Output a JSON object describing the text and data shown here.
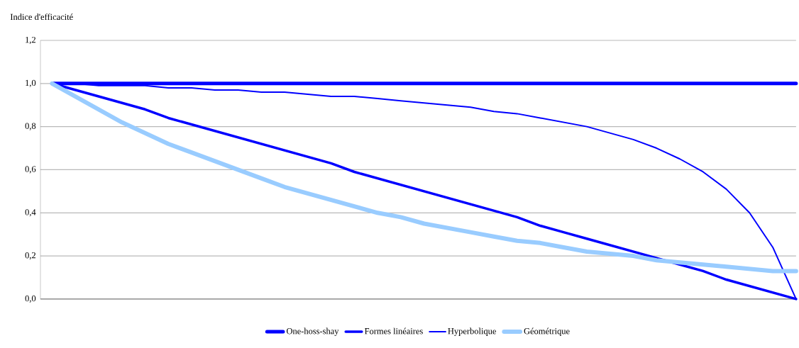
{
  "chart_data": {
    "type": "line",
    "ylabel": "Indice d'efficacité",
    "categories": [
      null,
      null,
      null,
      null,
      null,
      null,
      null,
      null,
      null,
      null,
      null,
      null,
      null,
      null,
      null,
      null,
      null,
      null,
      null,
      null,
      null,
      null,
      null,
      null,
      null,
      null,
      null,
      null,
      null,
      null,
      null,
      null,
      null
    ],
    "series": [
      {
        "name": "One-hoss-shay",
        "color": "#0000ff",
        "values": [
          1,
          1,
          1,
          1,
          1,
          1,
          1,
          1,
          1,
          1,
          1,
          1,
          1,
          1,
          1,
          1,
          1,
          1,
          1,
          1,
          1,
          1,
          1,
          1,
          1,
          1,
          1,
          1,
          1,
          1,
          1,
          1,
          1
        ]
      },
      {
        "name": "Formes linéaires",
        "color": "#0000ff",
        "values": [
          1,
          0.97,
          0.94,
          0.91,
          0.88,
          0.84,
          0.81,
          0.78,
          0.75,
          0.72,
          0.69,
          0.66,
          0.63,
          0.59,
          0.56,
          0.53,
          0.5,
          0.47,
          0.44,
          0.41,
          0.38,
          0.34,
          0.31,
          0.28,
          0.25,
          0.22,
          0.19,
          0.16,
          0.13,
          0.09,
          0.06,
          0.03,
          0
        ]
      },
      {
        "name": "Hyperbolique",
        "color": "#0000ff",
        "values": [
          1,
          1.0,
          0.99,
          0.99,
          0.99,
          0.98,
          0.98,
          0.97,
          0.97,
          0.96,
          0.96,
          0.95,
          0.94,
          0.94,
          0.93,
          0.92,
          0.91,
          0.9,
          0.89,
          0.87,
          0.86,
          0.84,
          0.82,
          0.8,
          0.77,
          0.74,
          0.7,
          0.65,
          0.59,
          0.51,
          0.4,
          0.24,
          0
        ]
      },
      {
        "name": "Géométrique",
        "color": "#99ccff",
        "values": [
          1,
          0.94,
          0.88,
          0.82,
          0.77,
          0.72,
          0.68,
          0.64,
          0.6,
          0.56,
          0.52,
          0.49,
          0.46,
          0.43,
          0.4,
          0.38,
          0.35,
          0.33,
          0.31,
          0.29,
          0.27,
          0.26,
          0.24,
          0.22,
          0.21,
          0.2,
          0.18,
          0.17,
          0.16,
          0.15,
          0.14,
          0.13,
          0.13
        ]
      }
    ],
    "ylim": [
      0,
      1.2
    ],
    "yticks": [
      {
        "value": 0,
        "label": "0,0"
      },
      {
        "value": 0.2,
        "label": "0,2"
      },
      {
        "value": 0.4,
        "label": "0,4"
      },
      {
        "value": 0.6,
        "label": "0,6"
      },
      {
        "value": 0.8,
        "label": "0,8"
      },
      {
        "value": 1.0,
        "label": "1,0"
      },
      {
        "value": 1.2,
        "label": "1,2"
      }
    ],
    "grid": "y",
    "legend": "bottom",
    "marker": "none",
    "line_style": "solid"
  }
}
